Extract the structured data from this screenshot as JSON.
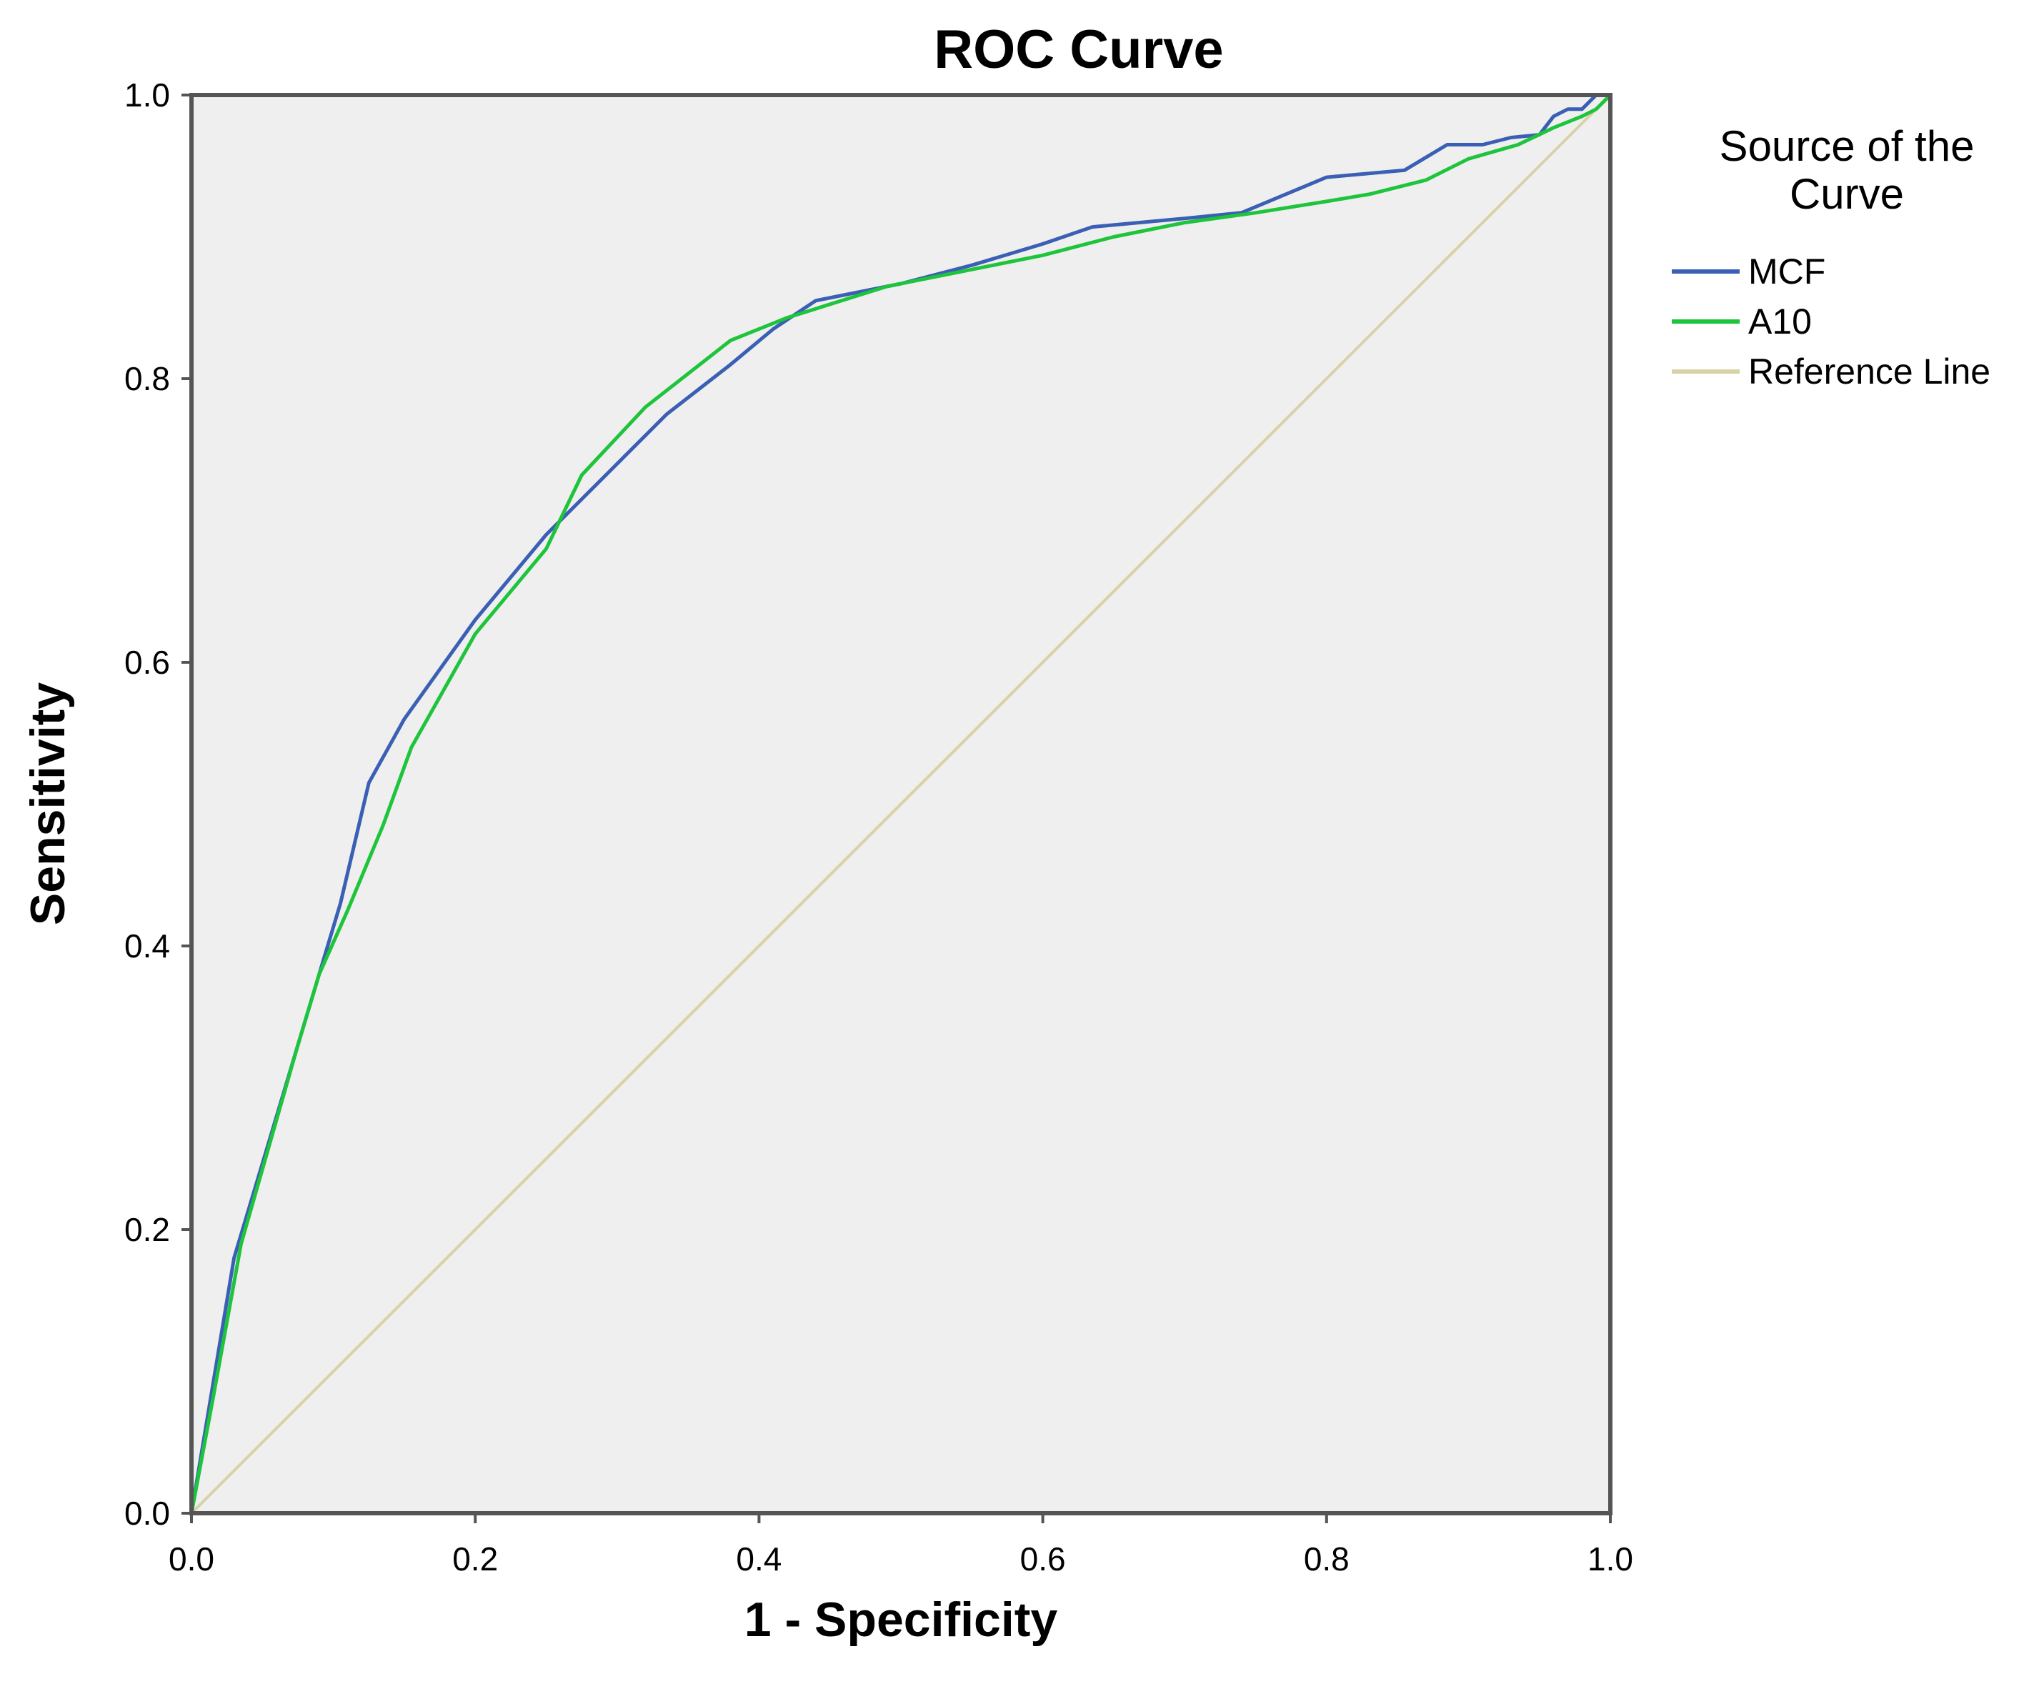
{
  "chart_data": {
    "type": "line",
    "title": "ROC Curve",
    "xlabel": "1 - Specificity",
    "ylabel": "Sensitivity",
    "xlim": [
      0,
      1
    ],
    "ylim": [
      0,
      1
    ],
    "x_ticks": [
      "0.0",
      "0.2",
      "0.4",
      "0.6",
      "0.8",
      "1.0"
    ],
    "y_ticks": [
      "0.0",
      "0.2",
      "0.4",
      "0.6",
      "0.8",
      "1.0"
    ],
    "grid": false,
    "plot_background": "#efefef",
    "legend": {
      "title": [
        "Source of the",
        "Curve"
      ],
      "position": "right"
    },
    "series": [
      {
        "name": "MCF",
        "color": "#3a5fb4",
        "points": [
          [
            0,
            0
          ],
          [
            0.015,
            0.09
          ],
          [
            0.03,
            0.18
          ],
          [
            0.045,
            0.23
          ],
          [
            0.06,
            0.28
          ],
          [
            0.075,
            0.33
          ],
          [
            0.09,
            0.38
          ],
          [
            0.105,
            0.43
          ],
          [
            0.125,
            0.515
          ],
          [
            0.15,
            0.56
          ],
          [
            0.2,
            0.63
          ],
          [
            0.25,
            0.69
          ],
          [
            0.3,
            0.74
          ],
          [
            0.335,
            0.775
          ],
          [
            0.38,
            0.81
          ],
          [
            0.41,
            0.835
          ],
          [
            0.44,
            0.855
          ],
          [
            0.5,
            0.867
          ],
          [
            0.55,
            0.88
          ],
          [
            0.6,
            0.895
          ],
          [
            0.635,
            0.907
          ],
          [
            0.7,
            0.913
          ],
          [
            0.74,
            0.917
          ],
          [
            0.8,
            0.942
          ],
          [
            0.855,
            0.947
          ],
          [
            0.885,
            0.965
          ],
          [
            0.91,
            0.965
          ],
          [
            0.93,
            0.97
          ],
          [
            0.95,
            0.972
          ],
          [
            0.96,
            0.985
          ],
          [
            0.97,
            0.99
          ],
          [
            0.98,
            0.99
          ],
          [
            0.99,
            1.0
          ],
          [
            1.0,
            1.0
          ]
        ]
      },
      {
        "name": "A10",
        "color": "#1ec43c",
        "points": [
          [
            0,
            0
          ],
          [
            0.015,
            0.08
          ],
          [
            0.035,
            0.19
          ],
          [
            0.055,
            0.26
          ],
          [
            0.075,
            0.33
          ],
          [
            0.09,
            0.38
          ],
          [
            0.11,
            0.425
          ],
          [
            0.135,
            0.485
          ],
          [
            0.155,
            0.54
          ],
          [
            0.2,
            0.62
          ],
          [
            0.25,
            0.68
          ],
          [
            0.275,
            0.732
          ],
          [
            0.32,
            0.78
          ],
          [
            0.38,
            0.827
          ],
          [
            0.42,
            0.843
          ],
          [
            0.49,
            0.865
          ],
          [
            0.55,
            0.877
          ],
          [
            0.6,
            0.887
          ],
          [
            0.65,
            0.9
          ],
          [
            0.7,
            0.91
          ],
          [
            0.75,
            0.917
          ],
          [
            0.8,
            0.925
          ],
          [
            0.83,
            0.93
          ],
          [
            0.87,
            0.94
          ],
          [
            0.9,
            0.955
          ],
          [
            0.935,
            0.965
          ],
          [
            0.96,
            0.977
          ],
          [
            0.98,
            0.985
          ],
          [
            0.99,
            0.99
          ],
          [
            1.0,
            1.0
          ]
        ]
      },
      {
        "name": "Reference Line",
        "color": "#d8d2a6",
        "points": [
          [
            0,
            0
          ],
          [
            1,
            1
          ]
        ]
      }
    ]
  }
}
